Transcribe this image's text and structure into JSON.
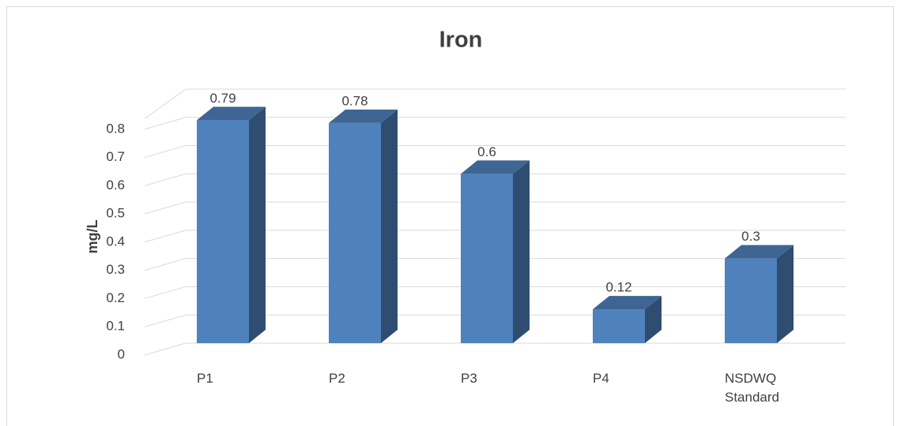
{
  "chart_data": {
    "type": "bar3d",
    "title": "Iron",
    "y_label": "mg/L",
    "categories": [
      "P1",
      "P2",
      "P3",
      "P4",
      "NSDWQ Standard"
    ],
    "values": [
      0.79,
      0.78,
      0.6,
      0.12,
      0.3
    ],
    "color": "#4f81bd",
    "ylim": [
      0,
      0.9
    ],
    "yticks": [
      0,
      0.1,
      0.2,
      0.3,
      0.4,
      0.5,
      0.6,
      0.7,
      0.8
    ],
    "grid": true
  }
}
